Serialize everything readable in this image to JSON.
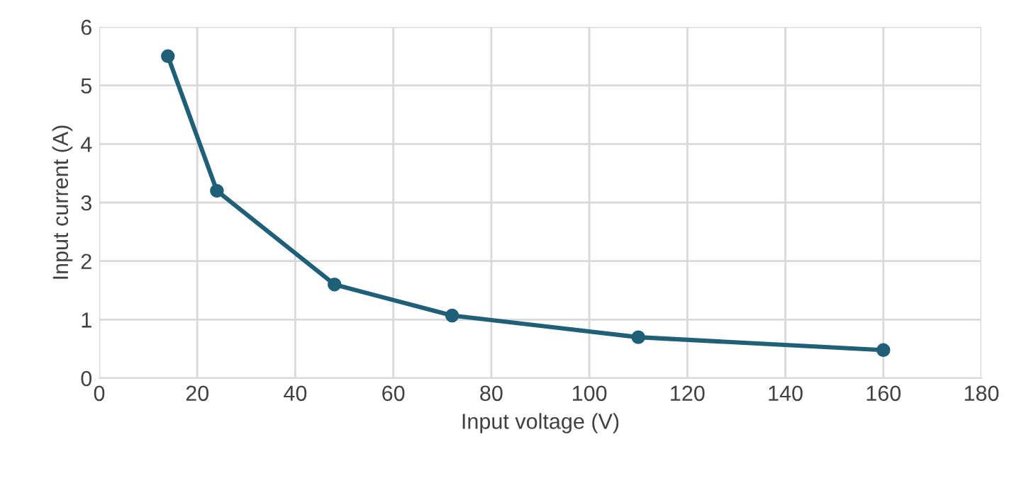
{
  "chart_data": {
    "type": "line",
    "xlabel": "Input voltage (V)",
    "ylabel": "Input current (A)",
    "x": [
      14,
      24,
      48,
      72,
      110,
      160
    ],
    "series": [
      {
        "color": "#1f5f78",
        "values": [
          5.5,
          3.2,
          1.6,
          1.07,
          0.7,
          0.48
        ]
      }
    ],
    "xlim": [
      0,
      180
    ],
    "xticks": [
      0,
      20,
      40,
      60,
      80,
      100,
      120,
      140,
      160,
      180
    ],
    "ylim": [
      0,
      6
    ],
    "yticks": [
      0,
      1,
      2,
      3,
      4,
      5,
      6
    ],
    "grid": true,
    "legend": false,
    "marker": "circle",
    "line_style": "solid"
  }
}
